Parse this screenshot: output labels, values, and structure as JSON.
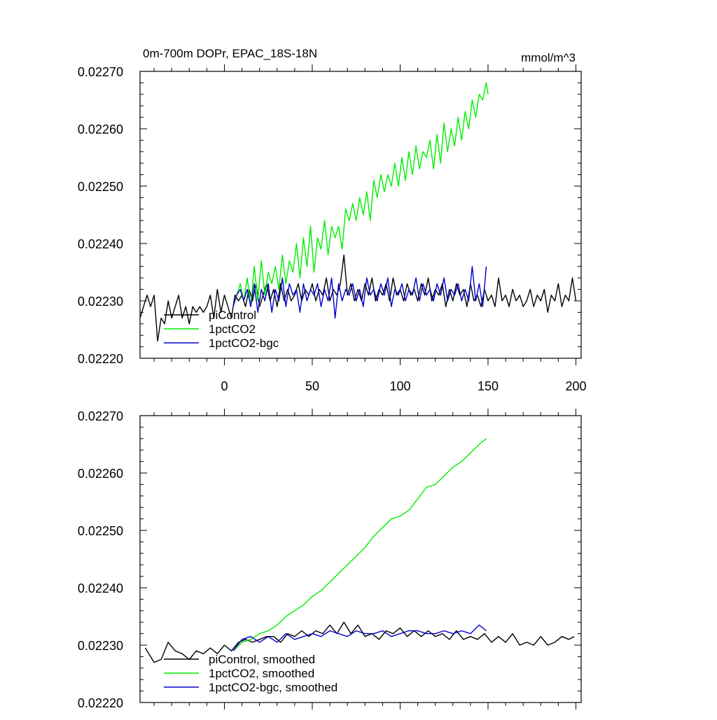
{
  "chart_data": [
    {
      "type": "line",
      "title": "0m-700m DOPr, EPAC_18S-18N",
      "units": "mmol/m^3",
      "xlim": [
        -48,
        203
      ],
      "ylim": [
        0.0222,
        0.0227
      ],
      "x_ticks": [
        "0",
        "50",
        "100",
        "150",
        "200"
      ],
      "x_tick_values": [
        0,
        50,
        100,
        150,
        200
      ],
      "y_ticks": [
        "0.02220",
        "0.02230",
        "0.02240",
        "0.02250",
        "0.02260",
        "0.02270"
      ],
      "y_tick_values": [
        0.0222,
        0.0223,
        0.0224,
        0.0225,
        0.0226,
        0.0227
      ],
      "legend": [
        "piControl",
        "1pctCO2",
        "1pctCO2-bgc"
      ],
      "legend_position": "bottom-left",
      "series": [
        {
          "name": "piControl",
          "color": "#000000",
          "x": [
            -48,
            -44,
            -42,
            -40,
            -38,
            -36,
            -34,
            -32,
            -30,
            -28,
            -26,
            -24,
            -22,
            -20,
            -18,
            -16,
            -14,
            -12,
            -10,
            -8,
            -6,
            -4,
            -2,
            0,
            2,
            4,
            6,
            8,
            10,
            12,
            14,
            16,
            18,
            20,
            22,
            24,
            26,
            28,
            30,
            32,
            34,
            36,
            38,
            40,
            42,
            44,
            46,
            48,
            50,
            52,
            54,
            56,
            58,
            60,
            62,
            64,
            66,
            68,
            70,
            72,
            74,
            76,
            78,
            80,
            82,
            84,
            86,
            88,
            90,
            92,
            94,
            96,
            98,
            100,
            102,
            104,
            106,
            108,
            110,
            112,
            114,
            116,
            118,
            120,
            122,
            124,
            126,
            128,
            130,
            132,
            134,
            136,
            138,
            140,
            142,
            144,
            146,
            148,
            150,
            152,
            154,
            156,
            158,
            160,
            162,
            164,
            166,
            168,
            170,
            172,
            174,
            176,
            178,
            180,
            182,
            184,
            186,
            188,
            190,
            192,
            194,
            196,
            198,
            200
          ],
          "y": [
            0.02227,
            0.02231,
            0.02229,
            0.02231,
            0.02223,
            0.02227,
            0.02226,
            0.0223,
            0.02227,
            0.02229,
            0.02231,
            0.02227,
            0.02229,
            0.02226,
            0.02229,
            0.02228,
            0.02229,
            0.02228,
            0.02229,
            0.02231,
            0.02227,
            0.02232,
            0.02228,
            0.02231,
            0.02229,
            0.02227,
            0.02231,
            0.0223,
            0.02231,
            0.02229,
            0.02232,
            0.0223,
            0.02233,
            0.02229,
            0.02231,
            0.02233,
            0.0223,
            0.02232,
            0.02229,
            0.02233,
            0.0223,
            0.02232,
            0.0223,
            0.02231,
            0.02233,
            0.0223,
            0.02232,
            0.02231,
            0.02233,
            0.0223,
            0.02232,
            0.02231,
            0.02234,
            0.0223,
            0.02232,
            0.02231,
            0.02233,
            0.02238,
            0.02231,
            0.02233,
            0.0223,
            0.02232,
            0.0223,
            0.02233,
            0.02231,
            0.02234,
            0.0223,
            0.02232,
            0.02231,
            0.02233,
            0.0223,
            0.02234,
            0.02231,
            0.02232,
            0.0223,
            0.02233,
            0.02231,
            0.02232,
            0.0223,
            0.02233,
            0.02231,
            0.02234,
            0.0223,
            0.02232,
            0.02231,
            0.02233,
            0.02229,
            0.02232,
            0.0223,
            0.02233,
            0.02231,
            0.02232,
            0.02229,
            0.02233,
            0.0223,
            0.02231,
            0.02229,
            0.02232,
            0.0223,
            0.02231,
            0.02229,
            0.02234,
            0.0223,
            0.02231,
            0.02229,
            0.02232,
            0.0223,
            0.02231,
            0.02229,
            0.0223,
            0.02232,
            0.02229,
            0.02231,
            0.0223,
            0.02232,
            0.02228,
            0.02231,
            0.0223,
            0.02233,
            0.02229,
            0.02231,
            0.0223,
            0.02234,
            0.0223
          ]
        },
        {
          "name": "1pctCO2",
          "color": "#00ee00",
          "x": [
            5,
            7,
            9,
            11,
            13,
            15,
            17,
            19,
            21,
            23,
            25,
            27,
            29,
            31,
            33,
            35,
            37,
            39,
            41,
            43,
            45,
            47,
            49,
            51,
            53,
            55,
            57,
            59,
            61,
            63,
            65,
            67,
            69,
            71,
            73,
            75,
            77,
            79,
            81,
            83,
            85,
            87,
            89,
            91,
            93,
            95,
            97,
            99,
            101,
            103,
            105,
            107,
            109,
            111,
            113,
            115,
            117,
            119,
            121,
            123,
            125,
            127,
            129,
            131,
            133,
            135,
            137,
            139,
            141,
            143,
            145,
            147,
            149,
            150
          ],
          "y": [
            0.02229,
            0.02231,
            0.02233,
            0.0223,
            0.02234,
            0.02229,
            0.02236,
            0.0223,
            0.02237,
            0.02231,
            0.02235,
            0.02233,
            0.02236,
            0.02232,
            0.02238,
            0.02233,
            0.02237,
            0.02235,
            0.0224,
            0.02234,
            0.02241,
            0.02236,
            0.02243,
            0.02235,
            0.02241,
            0.02239,
            0.02244,
            0.02238,
            0.02243,
            0.02241,
            0.02243,
            0.02239,
            0.02246,
            0.02244,
            0.02247,
            0.02244,
            0.02248,
            0.02245,
            0.02249,
            0.02244,
            0.02251,
            0.02248,
            0.02252,
            0.02249,
            0.02252,
            0.0225,
            0.02254,
            0.0225,
            0.02255,
            0.02251,
            0.02256,
            0.02252,
            0.02257,
            0.02253,
            0.02256,
            0.02255,
            0.02258,
            0.02253,
            0.02259,
            0.02254,
            0.02261,
            0.02256,
            0.0226,
            0.02257,
            0.02262,
            0.02258,
            0.02263,
            0.0226,
            0.02265,
            0.02262,
            0.02266,
            0.02265,
            0.02268,
            0.02266
          ]
        },
        {
          "name": "1pctCO2-bgc",
          "color": "#0000cc",
          "x": [
            5,
            7,
            9,
            11,
            13,
            15,
            17,
            19,
            21,
            23,
            25,
            27,
            29,
            31,
            33,
            35,
            37,
            39,
            41,
            43,
            45,
            47,
            49,
            51,
            53,
            55,
            57,
            59,
            61,
            63,
            65,
            67,
            69,
            71,
            73,
            75,
            77,
            79,
            81,
            83,
            85,
            87,
            89,
            91,
            93,
            95,
            97,
            99,
            101,
            103,
            105,
            107,
            109,
            111,
            113,
            115,
            117,
            119,
            121,
            123,
            125,
            127,
            129,
            131,
            133,
            135,
            137,
            139,
            141,
            143,
            145,
            147,
            149
          ],
          "y": [
            0.02229,
            0.02231,
            0.02232,
            0.0223,
            0.02232,
            0.02229,
            0.02233,
            0.02228,
            0.02232,
            0.0223,
            0.02233,
            0.02228,
            0.02232,
            0.0223,
            0.02234,
            0.02229,
            0.02233,
            0.02231,
            0.02232,
            0.02228,
            0.02233,
            0.0223,
            0.02232,
            0.02231,
            0.02233,
            0.02229,
            0.02232,
            0.0223,
            0.02234,
            0.02227,
            0.02233,
            0.0223,
            0.02232,
            0.02231,
            0.02233,
            0.0223,
            0.02232,
            0.02229,
            0.02234,
            0.02231,
            0.02232,
            0.0223,
            0.02233,
            0.02231,
            0.02234,
            0.02229,
            0.02232,
            0.02231,
            0.02233,
            0.0223,
            0.02232,
            0.02231,
            0.02234,
            0.0223,
            0.02233,
            0.02231,
            0.02232,
            0.0223,
            0.02233,
            0.02231,
            0.02234,
            0.0223,
            0.02232,
            0.02231,
            0.02233,
            0.0223,
            0.02232,
            0.0223,
            0.02236,
            0.0223,
            0.02233,
            0.02229,
            0.02236
          ]
        }
      ]
    },
    {
      "type": "line",
      "title": "",
      "xlim": [
        -48,
        203
      ],
      "ylim": [
        0.0222,
        0.0227
      ],
      "x_tick_values": [
        0,
        50,
        100,
        150,
        200
      ],
      "y_ticks": [
        "0.02220",
        "0.02230",
        "0.02240",
        "0.02250",
        "0.02260",
        "0.02270"
      ],
      "y_tick_values": [
        0.0222,
        0.0223,
        0.0224,
        0.0225,
        0.0226,
        0.0227
      ],
      "legend": [
        "piControl, smoothed",
        "1pctCO2, smoothed",
        "1pctCO2-bgc, smoothed"
      ],
      "legend_position": "bottom-left",
      "series": [
        {
          "name": "piControl, smoothed",
          "color": "#000000",
          "x": [
            -45,
            -40,
            -36,
            -32,
            -28,
            -24,
            -20,
            -16,
            -12,
            -8,
            -4,
            0,
            4,
            8,
            12,
            16,
            20,
            24,
            28,
            32,
            36,
            40,
            44,
            48,
            52,
            56,
            60,
            64,
            68,
            72,
            76,
            80,
            84,
            88,
            92,
            96,
            100,
            104,
            108,
            112,
            116,
            120,
            124,
            128,
            132,
            136,
            140,
            144,
            148,
            152,
            156,
            160,
            164,
            168,
            172,
            176,
            180,
            184,
            188,
            192,
            196,
            199
          ],
          "y": [
            0.022295,
            0.02227,
            0.022275,
            0.022305,
            0.02229,
            0.022285,
            0.022275,
            0.02229,
            0.022285,
            0.022295,
            0.022285,
            0.0223,
            0.02229,
            0.022305,
            0.02231,
            0.022305,
            0.02231,
            0.022315,
            0.022315,
            0.022305,
            0.02232,
            0.022315,
            0.022325,
            0.022315,
            0.022325,
            0.02232,
            0.022335,
            0.02232,
            0.02234,
            0.02232,
            0.022335,
            0.022315,
            0.02232,
            0.02231,
            0.022325,
            0.02232,
            0.02233,
            0.022315,
            0.022325,
            0.022315,
            0.022325,
            0.022315,
            0.02232,
            0.02231,
            0.022325,
            0.02231,
            0.022315,
            0.02231,
            0.02232,
            0.022305,
            0.022315,
            0.022305,
            0.02232,
            0.0223,
            0.022305,
            0.0223,
            0.022315,
            0.0223,
            0.022305,
            0.022315,
            0.02231,
            0.022315
          ]
        },
        {
          "name": "1pctCO2, smoothed",
          "color": "#00ee00",
          "x": [
            5,
            10,
            15,
            20,
            25,
            30,
            35,
            40,
            45,
            50,
            55,
            60,
            65,
            70,
            75,
            80,
            85,
            90,
            95,
            100,
            105,
            110,
            115,
            120,
            125,
            130,
            135,
            140,
            145,
            149
          ],
          "y": [
            0.02229,
            0.022305,
            0.02231,
            0.02232,
            0.022325,
            0.022335,
            0.02235,
            0.02236,
            0.02237,
            0.022385,
            0.022395,
            0.02241,
            0.022425,
            0.02244,
            0.022455,
            0.02247,
            0.02249,
            0.022505,
            0.02252,
            0.022525,
            0.022535,
            0.022555,
            0.022575,
            0.02258,
            0.022595,
            0.02261,
            0.02262,
            0.022635,
            0.02265,
            0.02266
          ]
        },
        {
          "name": "1pctCO2-bgc, smoothed",
          "color": "#0000cc",
          "x": [
            5,
            10,
            15,
            20,
            25,
            30,
            35,
            40,
            45,
            50,
            55,
            60,
            65,
            70,
            75,
            80,
            85,
            90,
            95,
            100,
            105,
            110,
            115,
            120,
            125,
            130,
            135,
            140,
            145,
            149
          ],
          "y": [
            0.02229,
            0.02231,
            0.022315,
            0.022305,
            0.022315,
            0.022305,
            0.02232,
            0.02231,
            0.022315,
            0.02232,
            0.022315,
            0.022325,
            0.02232,
            0.022315,
            0.022325,
            0.02232,
            0.02232,
            0.022325,
            0.022315,
            0.02232,
            0.022325,
            0.022325,
            0.02232,
            0.02232,
            0.022325,
            0.02232,
            0.022325,
            0.02232,
            0.022335,
            0.022325
          ]
        }
      ]
    }
  ]
}
